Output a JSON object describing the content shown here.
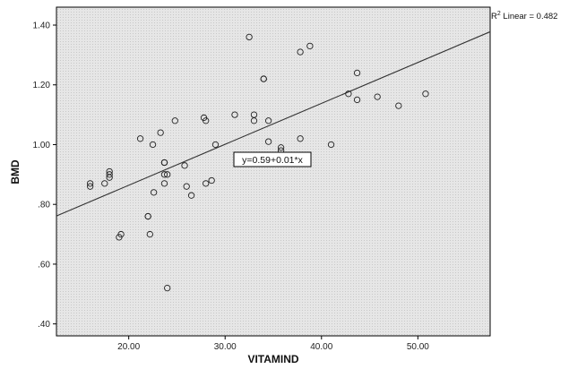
{
  "chart_data": {
    "type": "scatter",
    "xlabel": "VITAMIND",
    "ylabel": "BMD",
    "xlim": [
      12.5,
      57.5
    ],
    "ylim": [
      0.36,
      1.46
    ],
    "x_ticks": [
      20,
      30,
      40,
      50
    ],
    "x_tick_labels": [
      "20.00",
      "30.00",
      "40.00",
      "50.00"
    ],
    "y_ticks": [
      0.4,
      0.6,
      0.8,
      1.0,
      1.2,
      1.4
    ],
    "y_tick_labels": [
      ".40",
      ".60",
      ".80",
      "1.00",
      "1.20",
      "1.40"
    ],
    "grid": false,
    "points": [
      {
        "x": 16.0,
        "y": 0.87
      },
      {
        "x": 16.0,
        "y": 0.86
      },
      {
        "x": 17.5,
        "y": 0.87
      },
      {
        "x": 18.0,
        "y": 0.91
      },
      {
        "x": 18.0,
        "y": 0.9
      },
      {
        "x": 18.0,
        "y": 0.89
      },
      {
        "x": 19.0,
        "y": 0.69
      },
      {
        "x": 19.2,
        "y": 0.7
      },
      {
        "x": 21.2,
        "y": 1.02
      },
      {
        "x": 22.0,
        "y": 0.76
      },
      {
        "x": 22.0,
        "y": 0.76
      },
      {
        "x": 22.2,
        "y": 0.7
      },
      {
        "x": 22.5,
        "y": 1.0
      },
      {
        "x": 22.6,
        "y": 0.84
      },
      {
        "x": 23.3,
        "y": 1.04
      },
      {
        "x": 23.7,
        "y": 0.94
      },
      {
        "x": 23.7,
        "y": 0.94
      },
      {
        "x": 23.7,
        "y": 0.9
      },
      {
        "x": 24.0,
        "y": 0.9
      },
      {
        "x": 23.7,
        "y": 0.87
      },
      {
        "x": 24.0,
        "y": 0.52
      },
      {
        "x": 24.8,
        "y": 1.08
      },
      {
        "x": 25.8,
        "y": 0.93
      },
      {
        "x": 26.0,
        "y": 0.86
      },
      {
        "x": 26.5,
        "y": 0.83
      },
      {
        "x": 27.8,
        "y": 1.09
      },
      {
        "x": 28.0,
        "y": 1.08
      },
      {
        "x": 28.0,
        "y": 0.87
      },
      {
        "x": 28.6,
        "y": 0.88
      },
      {
        "x": 29.0,
        "y": 1.0
      },
      {
        "x": 31.0,
        "y": 1.1
      },
      {
        "x": 32.5,
        "y": 1.36
      },
      {
        "x": 33.0,
        "y": 1.1
      },
      {
        "x": 33.0,
        "y": 1.08
      },
      {
        "x": 34.0,
        "y": 1.22
      },
      {
        "x": 34.0,
        "y": 1.22
      },
      {
        "x": 34.5,
        "y": 1.08
      },
      {
        "x": 34.5,
        "y": 1.01
      },
      {
        "x": 35.8,
        "y": 0.99
      },
      {
        "x": 35.8,
        "y": 0.98
      },
      {
        "x": 37.8,
        "y": 1.31
      },
      {
        "x": 37.8,
        "y": 1.02
      },
      {
        "x": 38.8,
        "y": 1.33
      },
      {
        "x": 41.0,
        "y": 1.0
      },
      {
        "x": 42.8,
        "y": 1.17
      },
      {
        "x": 43.7,
        "y": 1.24
      },
      {
        "x": 43.7,
        "y": 1.15
      },
      {
        "x": 45.8,
        "y": 1.16
      },
      {
        "x": 48.0,
        "y": 1.13
      },
      {
        "x": 50.8,
        "y": 1.17
      }
    ],
    "fit_line": {
      "intercept": 0.59,
      "slope": 0.0137
    },
    "equation_label": "y=0.59+0.01*x",
    "r2_label": "R",
    "r2_sup": "2",
    "r2_suffix": " Linear = 0.482",
    "colors": {
      "plot_background": "#e3e3e3",
      "marker_stroke": "#222222",
      "fit_line": "#333333",
      "axis": "#000000"
    }
  }
}
